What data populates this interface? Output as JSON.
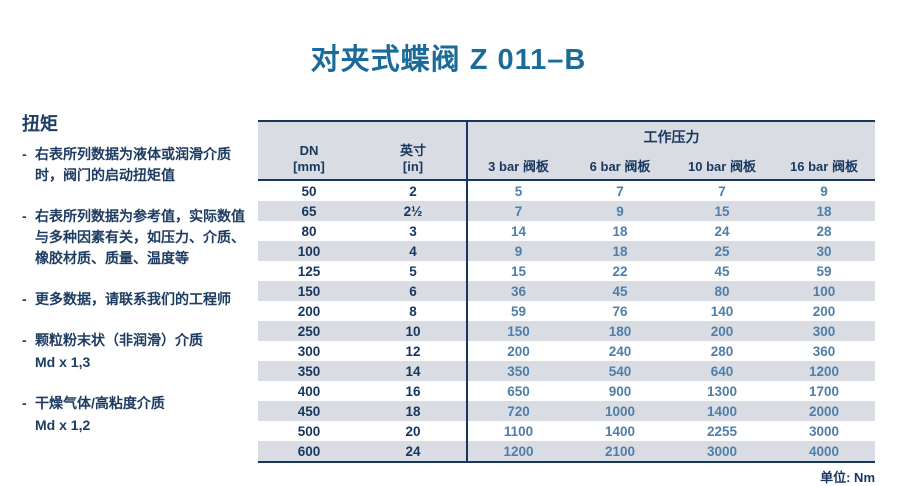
{
  "page": {
    "title": "对夹式蝶阀 Z 011–B"
  },
  "sidebar": {
    "heading": "扭矩",
    "notes": [
      {
        "text": "右表所列数据为液体或润滑介质时，阀门的启动扭矩值"
      },
      {
        "text": "右表所列数据为参考值，实际数值与多种因素有关，如压力、介质、橡胶材质、质量、温度等"
      },
      {
        "text": "更多数据，请联系我们的工程师"
      },
      {
        "text": "颗粒粉末状（非润滑）介质",
        "line2": "Md x 1,3"
      },
      {
        "text": "干燥气体/高粘度介质",
        "line2": "Md x 1,2"
      }
    ]
  },
  "table": {
    "dn_header": "DN\n[mm]",
    "inch_header": "英寸\n[in]",
    "group_header": "工作压力",
    "pressure_headers": [
      "3 bar 阀板",
      "6 bar 阀板",
      "10 bar 阀板",
      "16 bar 阀板"
    ],
    "rows": [
      [
        "50",
        "2",
        "5",
        "7",
        "7",
        "9"
      ],
      [
        "65",
        "2½",
        "7",
        "9",
        "15",
        "18"
      ],
      [
        "80",
        "3",
        "14",
        "18",
        "24",
        "28"
      ],
      [
        "100",
        "4",
        "9",
        "18",
        "25",
        "30"
      ],
      [
        "125",
        "5",
        "15",
        "22",
        "45",
        "59"
      ],
      [
        "150",
        "6",
        "36",
        "45",
        "80",
        "100"
      ],
      [
        "200",
        "8",
        "59",
        "76",
        "140",
        "200"
      ],
      [
        "250",
        "10",
        "150",
        "180",
        "200",
        "300"
      ],
      [
        "300",
        "12",
        "200",
        "240",
        "280",
        "360"
      ],
      [
        "350",
        "14",
        "350",
        "540",
        "640",
        "1200"
      ],
      [
        "400",
        "16",
        "650",
        "900",
        "1300",
        "1700"
      ],
      [
        "450",
        "18",
        "720",
        "1000",
        "1400",
        "2000"
      ],
      [
        "500",
        "20",
        "1100",
        "1400",
        "2255",
        "3000"
      ],
      [
        "600",
        "24",
        "1200",
        "2100",
        "3000",
        "4000"
      ]
    ],
    "unit_label": "单位: Nm"
  },
  "colors": {
    "title": "#1a6b99",
    "navy": "#17375e",
    "steel_blue": "#4f7ea9",
    "stripe": "#d9dde3"
  }
}
